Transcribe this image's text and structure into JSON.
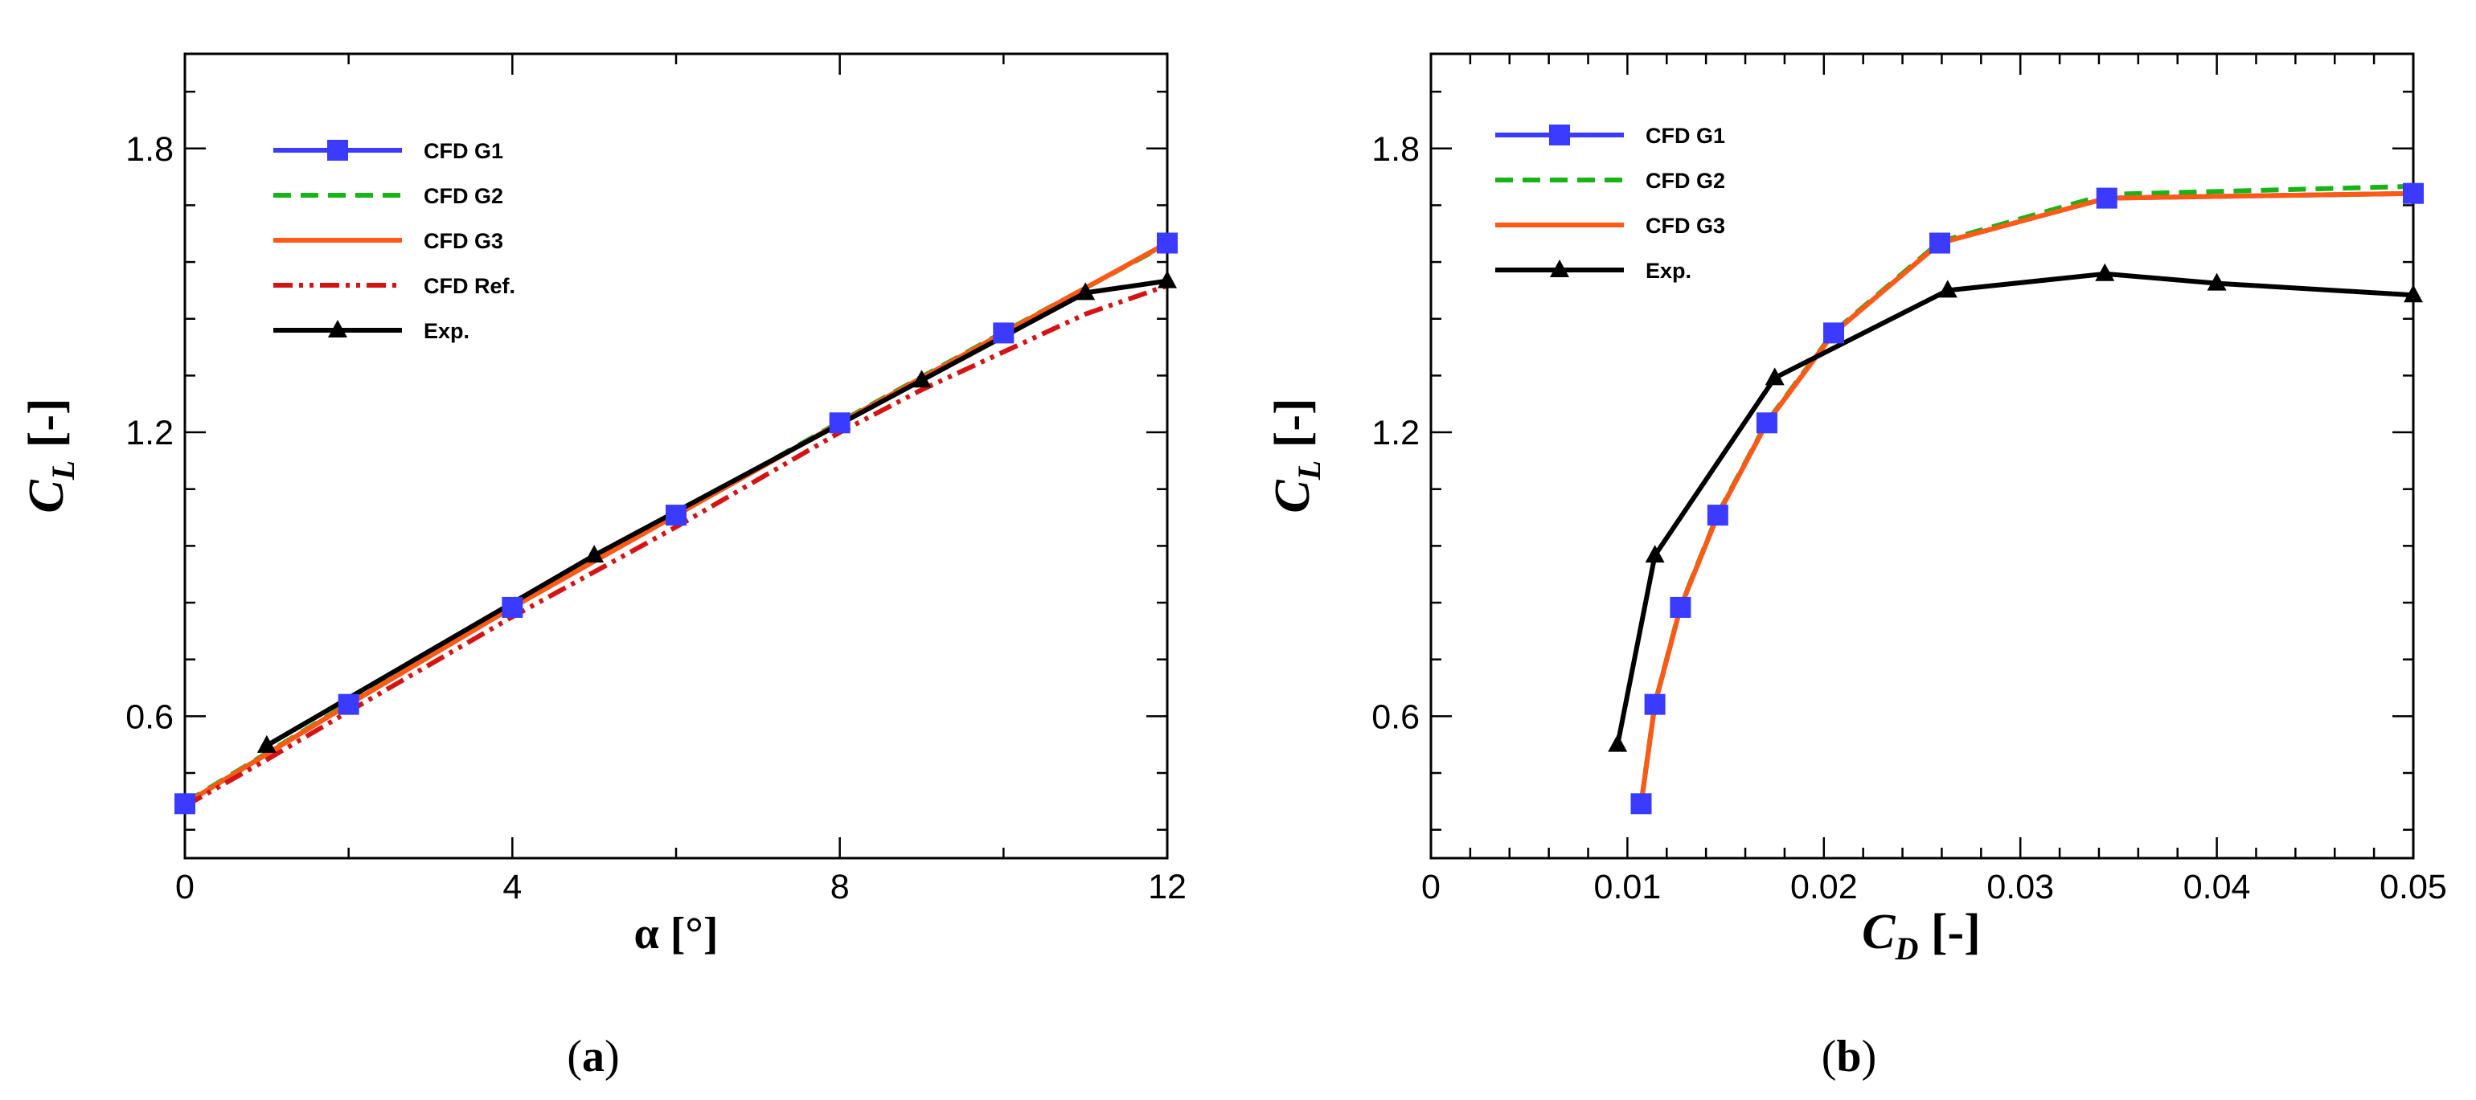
{
  "chart_data": [
    {
      "type": "line",
      "panel_caption": {
        "open": "(",
        "letter": "a",
        "close": ")"
      },
      "xlabel": "α [°]",
      "ylabel": {
        "main": "C",
        "sub": "L",
        "unit": "[-]"
      },
      "xlim": [
        0,
        12
      ],
      "ylim": [
        0.3,
        2.0
      ],
      "xticks": [
        0,
        4,
        8,
        12
      ],
      "xtick_labels": [
        "0",
        "4",
        "8",
        "12"
      ],
      "xminor_step": 2,
      "yticks": [
        0.6,
        1.2,
        1.8
      ],
      "ytick_labels": [
        "0.6",
        "1.2",
        "1.8"
      ],
      "yminor_step": 0.12,
      "legend_position": "top-left",
      "series": [
        {
          "name": "CFD G1",
          "color": "#3b3bff",
          "dash": "",
          "marker": "square",
          "marker_color": "#3b3bff",
          "x": [
            0,
            2,
            4,
            6,
            8,
            10,
            12
          ],
          "y": [
            0.415,
            0.625,
            0.83,
            1.025,
            1.22,
            1.41,
            1.6
          ]
        },
        {
          "name": "CFD G2",
          "color": "#17b317",
          "dash": "dash",
          "marker": "none",
          "x": [
            0,
            2,
            4,
            6,
            8,
            10,
            12
          ],
          "y": [
            0.417,
            0.627,
            0.832,
            1.027,
            1.222,
            1.412,
            1.598
          ]
        },
        {
          "name": "CFD G3",
          "color": "#ff5a14",
          "dash": "",
          "marker": "none",
          "x": [
            0,
            2,
            4,
            6,
            8,
            10,
            12
          ],
          "y": [
            0.415,
            0.625,
            0.83,
            1.025,
            1.22,
            1.41,
            1.6
          ]
        },
        {
          "name": "CFD Ref.",
          "color": "#d41414",
          "dash": "dashdotdot",
          "marker": "none",
          "x": [
            0,
            1,
            2,
            3,
            4,
            5,
            6,
            7,
            8,
            9,
            10,
            11,
            12
          ],
          "y": [
            0.41,
            0.508,
            0.61,
            0.71,
            0.81,
            0.905,
            1.0,
            1.1,
            1.2,
            1.29,
            1.37,
            1.45,
            1.51
          ]
        },
        {
          "name": "Exp.",
          "color": "#000000",
          "dash": "",
          "marker": "triangle",
          "marker_color": "#000000",
          "x": [
            1,
            5,
            9,
            11,
            12
          ],
          "y": [
            0.538,
            0.94,
            1.31,
            1.495,
            1.52
          ]
        }
      ]
    },
    {
      "type": "line",
      "panel_caption": {
        "open": "(",
        "letter": "b",
        "close": ")"
      },
      "xlabel": {
        "main": "C",
        "sub": "D",
        "unit": "[-]"
      },
      "ylabel": {
        "main": "C",
        "sub": "L",
        "unit": "[-]"
      },
      "xlim": [
        0,
        0.05
      ],
      "ylim": [
        0.3,
        2.0
      ],
      "xticks": [
        0,
        0.01,
        0.02,
        0.03,
        0.04,
        0.05
      ],
      "xtick_labels": [
        "0",
        "0.01",
        "0.02",
        "0.03",
        "0.04",
        "0.05"
      ],
      "xminor_step": 0.002,
      "yticks": [
        0.6,
        1.2,
        1.8
      ],
      "ytick_labels": [
        "0.6",
        "1.2",
        "1.8"
      ],
      "yminor_step": 0.12,
      "legend_position": "top-left",
      "series": [
        {
          "name": "CFD G1",
          "color": "#3b3bff",
          "dash": "",
          "marker": "square",
          "marker_color": "#3b3bff",
          "x": [
            0.0107,
            0.0114,
            0.0127,
            0.0146,
            0.0171,
            0.0205,
            0.0259,
            0.0344,
            0.05
          ],
          "y": [
            0.415,
            0.625,
            0.83,
            1.025,
            1.22,
            1.41,
            1.6,
            1.695,
            1.705
          ]
        },
        {
          "name": "CFD G2",
          "color": "#17b317",
          "dash": "dash",
          "marker": "none",
          "x": [
            0.0107,
            0.0114,
            0.0127,
            0.0146,
            0.0171,
            0.0205,
            0.0259,
            0.0344,
            0.05
          ],
          "y": [
            0.417,
            0.627,
            0.832,
            1.027,
            1.222,
            1.412,
            1.603,
            1.703,
            1.72
          ]
        },
        {
          "name": "CFD G3",
          "color": "#ff5a14",
          "dash": "",
          "marker": "none",
          "x": [
            0.0107,
            0.0114,
            0.0127,
            0.0146,
            0.0171,
            0.0205,
            0.0259,
            0.0344,
            0.05
          ],
          "y": [
            0.415,
            0.625,
            0.83,
            1.025,
            1.22,
            1.41,
            1.6,
            1.695,
            1.705
          ]
        },
        {
          "name": "Exp.",
          "color": "#000000",
          "dash": "",
          "marker": "triangle",
          "marker_color": "#000000",
          "x": [
            0.0095,
            0.0114,
            0.0175,
            0.0263,
            0.0343,
            0.04,
            0.05
          ],
          "y": [
            0.54,
            0.94,
            1.315,
            1.5,
            1.535,
            1.515,
            1.49
          ]
        }
      ]
    }
  ]
}
